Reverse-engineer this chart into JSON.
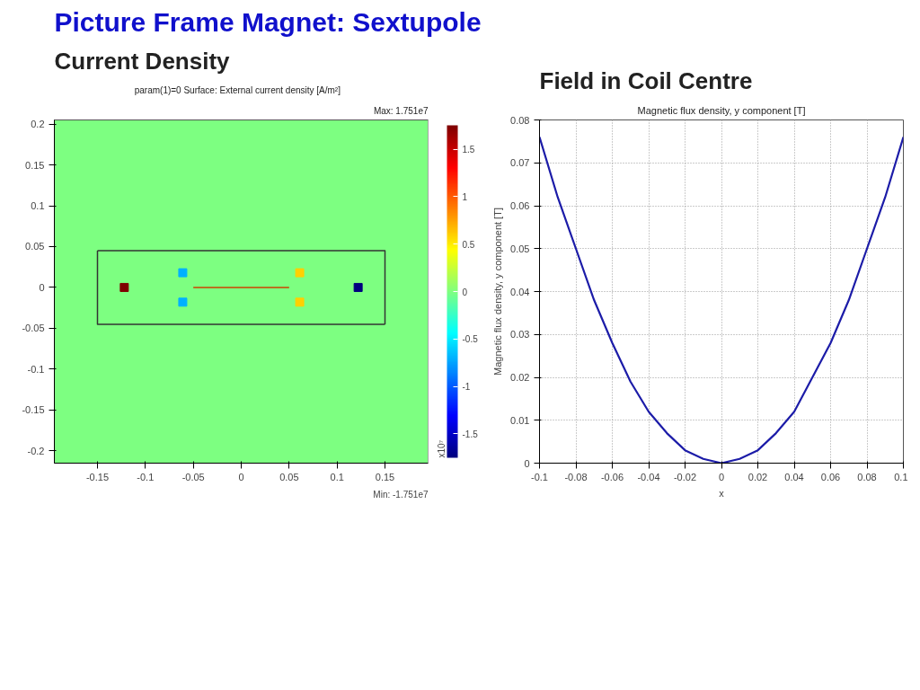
{
  "chart_data": [
    {
      "type": "scatter",
      "title": "Picture Frame Magnet: Sextupole",
      "subtitle": "Current Density",
      "annotations": [
        "param(1)=0    Surface: External current density [A/m²]",
        "Max: 1.751e7",
        "Min: -1.751e7"
      ],
      "series": [
        {
          "type": "scatter",
          "marker": "square",
          "x": [
            -0.122,
            0.122,
            -0.061,
            0.061,
            -0.061,
            0.061
          ],
          "values": [
            0,
            0,
            0.018,
            0.018,
            -0.018,
            -0.018
          ],
          "cvalues": [
            1.751,
            -1.751,
            -0.7,
            0.6,
            -0.7,
            0.6
          ],
          "colors": [
            "#7f0000",
            "#00007f",
            "#00b2ff",
            "#ffcf00",
            "#00b2ff",
            "#ffcf00"
          ]
        },
        {
          "type": "line",
          "x": [
            -0.15,
            0.15,
            0.15
          ],
          "values": [
            0.045,
            0.045,
            -0.045
          ],
          "color": "#333333"
        },
        {
          "type": "line",
          "x": [
            0.15,
            -0.15,
            -0.15
          ],
          "values": [
            -0.045,
            -0.045,
            0.045
          ],
          "color": "#333333"
        },
        {
          "type": "line",
          "x": [
            -0.05,
            0.05
          ],
          "values": [
            0,
            0
          ],
          "color": "#cc4400"
        }
      ],
      "xlim": [
        -0.195,
        0.195
      ],
      "ylim": [
        -0.215,
        0.205
      ],
      "xticks": [
        -0.15,
        -0.1,
        -0.05,
        0,
        0.05,
        0.1,
        0.15
      ],
      "yticks": [
        -0.2,
        -0.15,
        -0.1,
        -0.05,
        0,
        0.05,
        0.1,
        0.15,
        0.2
      ],
      "clim": [
        -1.751,
        1.751
      ],
      "cticks": [
        -1.5,
        -1,
        -0.5,
        0,
        0.5,
        1,
        1.5
      ],
      "clabel": "x10⁷"
    },
    {
      "type": "line",
      "title": "Field in Coil Centre",
      "subtitle": "Magnetic flux density, y component [T]",
      "xlabel": "x",
      "ylabel": "Magnetic flux density, y component [T]",
      "x": [
        -0.1,
        -0.09,
        -0.08,
        -0.07,
        -0.06,
        -0.05,
        -0.04,
        -0.03,
        -0.02,
        -0.01,
        0,
        0.01,
        0.02,
        0.03,
        0.04,
        0.05,
        0.06,
        0.07,
        0.08,
        0.09,
        0.1
      ],
      "values": [
        0.076,
        0.062,
        0.05,
        0.038,
        0.028,
        0.019,
        0.012,
        0.007,
        0.003,
        0.001,
        0,
        0.001,
        0.003,
        0.007,
        0.012,
        0.02,
        0.028,
        0.038,
        0.05,
        0.062,
        0.076
      ],
      "color": "#1c1ca8",
      "xlim": [
        -0.1,
        0.1
      ],
      "ylim": [
        0,
        0.08
      ],
      "xticks": [
        -0.1,
        -0.08,
        -0.06,
        -0.04,
        -0.02,
        0,
        0.02,
        0.04,
        0.06,
        0.08,
        0.1
      ],
      "yticks": [
        0,
        0.01,
        0.02,
        0.03,
        0.04,
        0.05,
        0.06,
        0.07,
        0.08
      ],
      "grid": true
    }
  ]
}
